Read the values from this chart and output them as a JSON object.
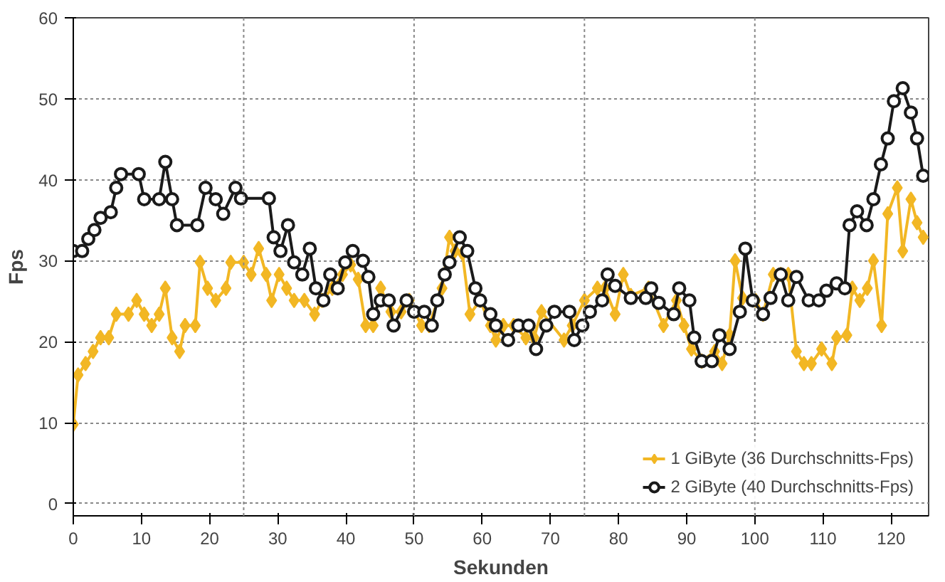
{
  "chart_data": {
    "type": "line",
    "xlabel": "Sekunden",
    "ylabel": "Fps",
    "xlim": [
      0,
      125.5
    ],
    "ylim": [
      -1.5,
      60
    ],
    "xticks": [
      0,
      10,
      20,
      30,
      40,
      50,
      60,
      70,
      80,
      90,
      100,
      110,
      120
    ],
    "yticks": [
      0,
      10,
      20,
      30,
      40,
      50,
      60
    ],
    "grid": "y",
    "legend": "bottom right",
    "ref_lines": [
      {
        "axis": "x",
        "value": 25,
        "color": "#888888",
        "line_style": "dotted"
      },
      {
        "axis": "x",
        "value": 50,
        "color": "#888888",
        "line_style": "dotted"
      },
      {
        "axis": "x",
        "value": 75,
        "color": "#888888",
        "line_style": "dotted"
      },
      {
        "axis": "x",
        "value": 100,
        "color": "#888888",
        "line_style": "dotted"
      }
    ],
    "series": [
      {
        "name": "1 GiByte (36 Durchschnitts-Fps)",
        "color": "#f2b724",
        "marker": "diamond",
        "x": [
          0,
          0.7,
          1.8,
          2.9,
          4,
          5.2,
          6.3,
          8.1,
          9.3,
          10.4,
          11.5,
          12.6,
          13.5,
          14.5,
          15.6,
          16.4,
          17.9,
          18.6,
          19.7,
          20.9,
          22.4,
          23.1,
          25,
          26.1,
          27.2,
          28.3,
          29.1,
          30.2,
          31.3,
          32.4,
          33.9,
          35.4,
          36.5,
          38,
          39.5,
          40.7,
          41.8,
          42.9,
          44,
          45.1,
          46.6,
          48.1,
          49.3,
          51.1,
          52.2,
          54.1,
          55.2,
          56,
          57.1,
          58.2,
          59.7,
          61.2,
          62,
          63.1,
          64.6,
          66.4,
          67.6,
          68.7,
          72,
          73.2,
          75,
          76.9,
          78,
          79.5,
          80.7,
          81.8,
          84.4,
          86.6,
          88.5,
          89.6,
          90.7,
          92.2,
          94.1,
          95.2,
          96.3,
          97.1,
          98.2,
          100.1,
          101.2,
          102.7,
          103.8,
          104.9,
          106.1,
          107.2,
          108.3,
          109.8,
          111.3,
          112,
          113.5,
          114.3,
          115.4,
          116.5,
          117.4,
          118.6,
          119.5,
          120.9,
          121.7,
          122.9,
          123.8,
          124.7
        ],
        "values": [
          9.8,
          15.9,
          17.3,
          18.8,
          20.5,
          20.5,
          23.4,
          23.4,
          25.1,
          23.4,
          22,
          23.4,
          26.6,
          20.5,
          18.8,
          22,
          22,
          29.8,
          26.6,
          25.1,
          26.6,
          29.8,
          29.8,
          28.3,
          31.5,
          28.3,
          25.1,
          28.3,
          26.6,
          25.1,
          25.1,
          23.4,
          25.1,
          26.6,
          28.3,
          29.5,
          27.7,
          22,
          22,
          26.6,
          23.7,
          23.7,
          25.1,
          22,
          22,
          26.6,
          32.9,
          31.2,
          30.9,
          23.4,
          25.1,
          22,
          20.2,
          22,
          22,
          20.5,
          20.5,
          23.7,
          20.2,
          22,
          25.1,
          26.6,
          26.6,
          23.4,
          28.3,
          25.7,
          26.6,
          22,
          25.1,
          22,
          19.1,
          17.6,
          18.8,
          17.3,
          20.8,
          30,
          25.4,
          25.1,
          23.4,
          28.3,
          28.3,
          28.3,
          18.8,
          17.3,
          17.3,
          19.1,
          17.3,
          20.5,
          20.8,
          26.6,
          25.1,
          26.6,
          30,
          22,
          35.8,
          39,
          31.2,
          37.6,
          34.7,
          32.9
        ]
      },
      {
        "name": "2 GiByte (40 Durchschnitts-Fps)",
        "color": "#1a1a1a",
        "marker": "circle",
        "x": [
          0,
          1.3,
          2.2,
          3.1,
          4,
          5.5,
          6.3,
          7,
          9.6,
          10.4,
          12.6,
          13.5,
          14.5,
          15.2,
          18.2,
          19.4,
          20.9,
          22,
          23.8,
          24.6,
          28.7,
          29.4,
          30.4,
          31.5,
          32.4,
          33.6,
          34.7,
          35.6,
          36.7,
          37.7,
          38.8,
          39.9,
          41,
          42.5,
          43.3,
          44,
          45.1,
          46.3,
          47,
          48.9,
          50,
          51.5,
          52.6,
          53.4,
          54.5,
          55.2,
          56.7,
          57.8,
          59,
          59.7,
          61.2,
          62,
          63.8,
          65.3,
          66.8,
          67.9,
          69.4,
          70.6,
          72.8,
          73.5,
          74.7,
          75.8,
          77.6,
          78.4,
          79.5,
          81.8,
          84,
          84.8,
          85.9,
          88.1,
          88.9,
          90.4,
          91.1,
          92.2,
          93.7,
          94.8,
          96.3,
          97.8,
          98.6,
          99.7,
          101.2,
          102.3,
          103.8,
          104.9,
          106.1,
          107.9,
          109.4,
          110.5,
          112,
          113.2,
          113.9,
          115,
          116.4,
          117.4,
          118.5,
          119.5,
          120.4,
          121.7,
          122.9,
          123.8,
          124.7
        ],
        "values": [
          31.2,
          31.2,
          32.7,
          33.8,
          35.3,
          36,
          39,
          40.7,
          40.7,
          37.6,
          37.6,
          42.2,
          37.6,
          34.4,
          34.4,
          39,
          37.6,
          35.8,
          39,
          37.7,
          37.7,
          32.9,
          31.2,
          34.4,
          29.8,
          28.3,
          31.5,
          26.6,
          25.1,
          28.3,
          26.6,
          29.8,
          31.2,
          30,
          28,
          23.4,
          25.1,
          25.1,
          22,
          25.1,
          23.7,
          23.7,
          22,
          25.1,
          28.3,
          29.8,
          32.9,
          31.2,
          26.6,
          25.1,
          23.4,
          22,
          20.2,
          22,
          22,
          19.1,
          22,
          23.7,
          23.7,
          20.2,
          22,
          23.7,
          25.1,
          28.3,
          26.9,
          25.4,
          25.4,
          26.6,
          24.8,
          23.4,
          26.6,
          25.1,
          20.5,
          17.6,
          17.6,
          20.8,
          19.1,
          23.7,
          31.5,
          25.1,
          23.4,
          25.4,
          28.3,
          25.1,
          28,
          25.1,
          25.1,
          26.3,
          27.2,
          26.6,
          34.4,
          36.1,
          34.4,
          37.6,
          41.9,
          45.1,
          49.7,
          51.3,
          48.3,
          45.1,
          40.5
        ]
      }
    ]
  }
}
